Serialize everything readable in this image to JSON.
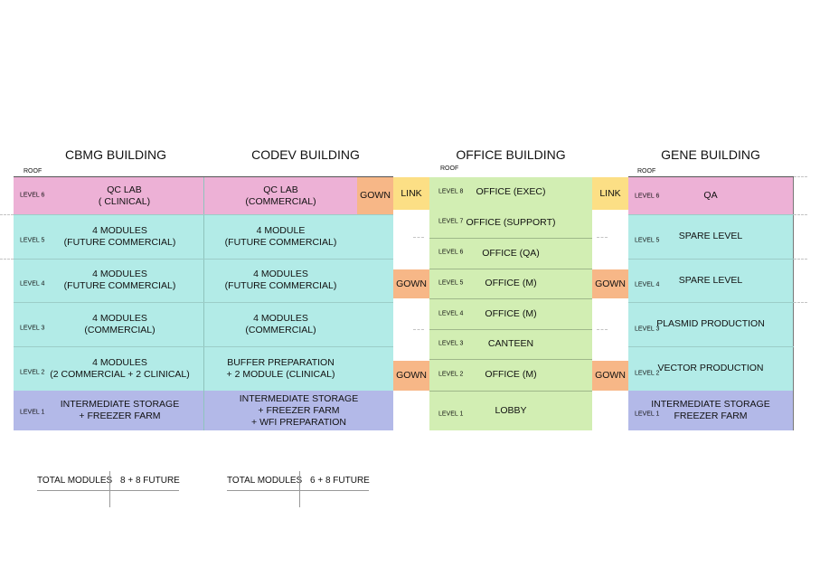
{
  "buildings": {
    "cbmg": {
      "title": "CBMG BUILDING",
      "roof": "ROOF",
      "levels": {
        "l6": {
          "label": "LEVEL 6",
          "text": "QC LAB\n( CLINICAL)"
        },
        "l5": {
          "label": "LEVEL 5",
          "text": "4 MODULES\n(FUTURE COMMERCIAL)"
        },
        "l4": {
          "label": "LEVEL 4",
          "text": "4 MODULES\n(FUTURE COMMERCIAL)"
        },
        "l3": {
          "label": "LEVEL 3",
          "text": "4 MODULES\n(COMMERCIAL)"
        },
        "l2": {
          "label": "LEVEL 2",
          "text": "4 MODULES\n(2 COMMERCIAL + 2 CLINICAL)"
        },
        "l1": {
          "label": "LEVEL 1",
          "text": "INTERMEDIATE STORAGE\n+ FREEZER FARM"
        }
      }
    },
    "codev": {
      "title": "CODEV BUILDING",
      "levels": {
        "l6": "QC LAB\n(COMMERCIAL)",
        "l5": "4 MODULE\n(FUTURE COMMERCIAL)",
        "l4": "4 MODULES\n(FUTURE COMMERCIAL)",
        "l3": "4 MODULES\n(COMMERCIAL)",
        "l2": "BUFFER PREPARATION\n+ 2 MODULE (CLINICAL)",
        "l1": "INTERMEDIATE STORAGE\n+  FREEZER FARM\n+  WFI PREPARATION"
      }
    },
    "office": {
      "title": "OFFICE BUILDING",
      "roof": "ROOF",
      "levels": {
        "l8": {
          "label": "LEVEL 8",
          "text": "OFFICE (EXEC)"
        },
        "l7": {
          "label": "LEVEL 7",
          "text": "OFFICE (SUPPORT)"
        },
        "l6": {
          "label": "LEVEL 6",
          "text": "OFFICE (QA)"
        },
        "l5": {
          "label": "LEVEL 5",
          "text": "OFFICE (M)"
        },
        "l4": {
          "label": "LEVEL 4",
          "text": "OFFICE (M)"
        },
        "l3": {
          "label": "LEVEL 3",
          "text": "CANTEEN"
        },
        "l2": {
          "label": "LEVEL 2",
          "text": "OFFICE (M)"
        },
        "l1": {
          "label": "LEVEL 1",
          "text": "LOBBY"
        }
      }
    },
    "gene": {
      "title": "GENE BUILDING",
      "roof": "ROOF",
      "levels": {
        "l6": {
          "label": "LEVEL 6",
          "text": "QA"
        },
        "l5": {
          "label": "LEVEL 5",
          "text": "SPARE LEVEL"
        },
        "l4": {
          "label": "LEVEL 4",
          "text": "SPARE LEVEL"
        },
        "l3": {
          "label": "LEVEL 3",
          "text": "PLASMID PRODUCTION"
        },
        "l2": {
          "label": "LEVEL 2",
          "text": "VECTOR PRODUCTION"
        },
        "l1": {
          "label": "LEVEL 1",
          "text": "INTERMEDIATE STORAGE\nFREEZER FARM"
        }
      }
    }
  },
  "connectors": {
    "gown": "GOWN",
    "link": "LINK"
  },
  "totals": {
    "cbmg": {
      "label": "TOTAL MODULES",
      "value": "8 + 8 FUTURE"
    },
    "codev": {
      "label": "TOTAL MODULES",
      "value": "6 + 8 FUTURE"
    }
  },
  "colors": {
    "pink": "#edb1d6",
    "cyan": "#b2ebe7",
    "blue": "#b3b9e8",
    "green": "#d2eeb3",
    "orange": "#f7b787",
    "yellow": "#fcdf85"
  }
}
